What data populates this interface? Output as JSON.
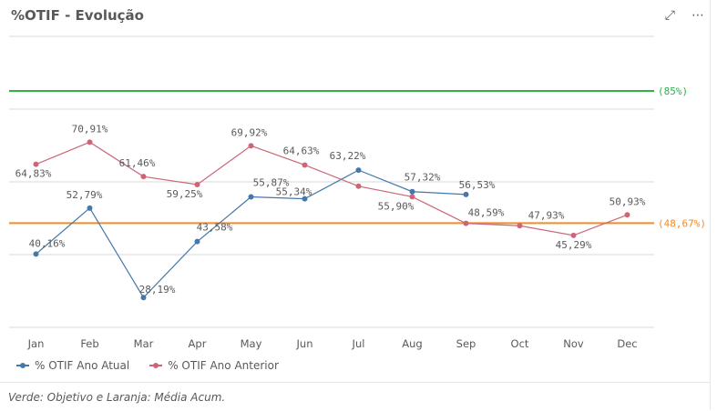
{
  "header": {
    "title": "%OTIF - Evolução",
    "expand_icon": "expand-icon",
    "more_icon": "more-icon"
  },
  "footer": {
    "note": "Verde: Objetivo e Laranja: Média Acum."
  },
  "chart_data": {
    "type": "line",
    "categories": [
      "Jan",
      "Feb",
      "Mar",
      "Apr",
      "May",
      "Jun",
      "Jul",
      "Aug",
      "Sep",
      "Oct",
      "Nov",
      "Dec"
    ],
    "series": [
      {
        "name": "% OTIF Ano Atual",
        "color": "#4477aa",
        "values": [
          40.16,
          52.79,
          28.19,
          43.58,
          55.87,
          55.34,
          63.22,
          57.32,
          56.53,
          null,
          null,
          null
        ],
        "labels": [
          "40,16%",
          "52,79%",
          "28,19%",
          "43,58%",
          "55,87%",
          "55,34%",
          "63,22%",
          "57,32%",
          "56,53%",
          null,
          null,
          null
        ]
      },
      {
        "name": "% OTIF Ano Anterior",
        "color": "#cc6677",
        "values": [
          64.83,
          70.91,
          61.46,
          59.25,
          69.92,
          64.63,
          58.8,
          55.9,
          48.59,
          47.93,
          45.29,
          50.93
        ],
        "labels": [
          "64,83%",
          "70,91%",
          "61,46%",
          "59,25%",
          "69,92%",
          "64,63%",
          null,
          "55,90%",
          "48,59%",
          "47,93%",
          "45,29%",
          "50,93%"
        ]
      }
    ],
    "reference_lines": [
      {
        "label": "(85%)",
        "value": 85,
        "color": "#2eb24a"
      },
      {
        "label": "(48,67%)",
        "value": 48.67,
        "color": "#f28c28"
      }
    ],
    "ylim": [
      20,
      100
    ],
    "grid": true,
    "legend": "bottom-left"
  }
}
